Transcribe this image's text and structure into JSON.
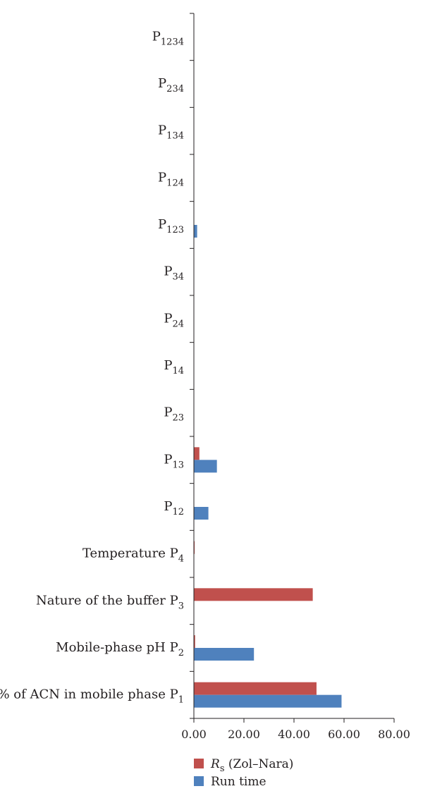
{
  "chart_data": {
    "type": "bar",
    "orientation": "horizontal",
    "categories": [
      {
        "text": "% of ACN in mobile phase P",
        "sub": "1"
      },
      {
        "text": "Mobile-phase pH P",
        "sub": "2"
      },
      {
        "text": "Nature of the buffer P",
        "sub": "3"
      },
      {
        "text": "Temperature P",
        "sub": "4"
      },
      {
        "text": "P",
        "sub": "12"
      },
      {
        "text": "P",
        "sub": "13"
      },
      {
        "text": "P",
        "sub": "23"
      },
      {
        "text": "P",
        "sub": "14"
      },
      {
        "text": "P",
        "sub": "24"
      },
      {
        "text": "P",
        "sub": "34"
      },
      {
        "text": "P",
        "sub": "123"
      },
      {
        "text": "P",
        "sub": "124"
      },
      {
        "text": "P",
        "sub": "134"
      },
      {
        "text": "P",
        "sub": "234"
      },
      {
        "text": "P",
        "sub": "1234"
      }
    ],
    "series": [
      {
        "name": "R",
        "name_sub": "s",
        "name_suffix": " (Zol–Nara)",
        "color": "#c0504d",
        "values": [
          49.0,
          0.5,
          47.5,
          0.3,
          0.0,
          2.2,
          0.0,
          0.0,
          0.0,
          0.0,
          0.0,
          0.0,
          0.0,
          0.0,
          0.0
        ]
      },
      {
        "name": "Run time",
        "color": "#4f81bd",
        "values": [
          59.0,
          24.0,
          0.0,
          0.0,
          5.8,
          9.2,
          0.0,
          0.0,
          0.0,
          0.0,
          1.3,
          0.0,
          0.0,
          0.0,
          0.0
        ]
      }
    ],
    "xlim": [
      0,
      80
    ],
    "xticks": [
      "0.00",
      "20.00",
      "40.00",
      "60.00",
      "80.00"
    ],
    "legend_position": "bottom"
  }
}
